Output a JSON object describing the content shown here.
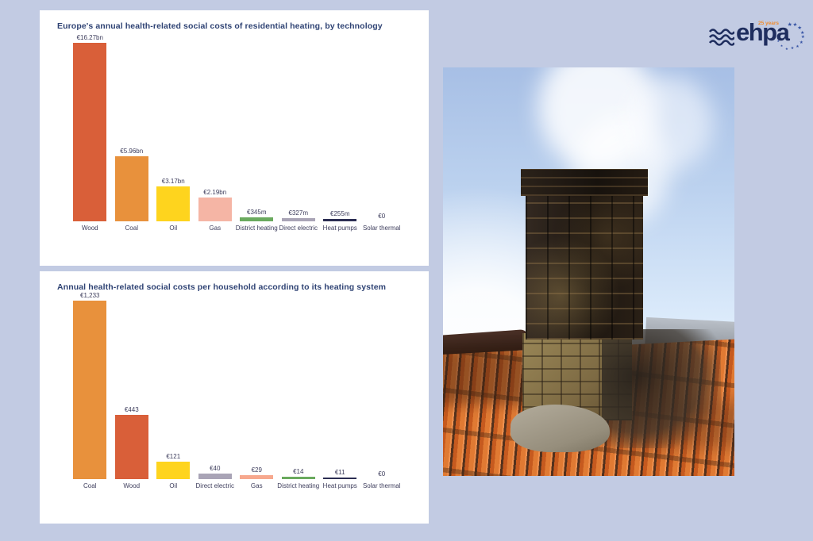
{
  "page": {
    "background_color": "#c2cbe3"
  },
  "logo": {
    "brand": "ehpa",
    "anniversary": "25 years",
    "star_char": "★",
    "star_count": 11,
    "brand_color": "#1e2d5e",
    "accent_color": "#ef8b2d"
  },
  "photo": {
    "description": "smoking dark brick chimney on an orange tiled roof against blue sky"
  },
  "chart_data": [
    {
      "type": "bar",
      "title": "Europe's annual health-related social costs of residential heating, by technology",
      "categories": [
        "Wood",
        "Coal",
        "Oil",
        "Gas",
        "District heating",
        "Direct electric",
        "Heat pumps",
        "Solar thermal"
      ],
      "values": [
        16.27,
        5.96,
        3.17,
        2.19,
        0.345,
        0.327,
        0.255,
        0
      ],
      "value_labels": [
        "€16.27bn",
        "€5.96bn",
        "€3.17bn",
        "€2.19bn",
        "€345m",
        "€327m",
        "€255m",
        "€0"
      ],
      "colors": [
        "#d95f39",
        "#e8913c",
        "#fed41e",
        "#f5b5a5",
        "#6aaa5e",
        "#a9a4b6",
        "#2b2d52",
        "#cccccc"
      ],
      "unit": "EUR, billions/millions per year",
      "ylim": [
        0,
        16.27
      ],
      "grid": false,
      "legend": "none"
    },
    {
      "type": "bar",
      "title": "Annual health-related social costs per household according to its heating system",
      "categories": [
        "Coal",
        "Wood",
        "Oil",
        "Direct electric",
        "Gas",
        "District heating",
        "Heat pumps",
        "Solar thermal"
      ],
      "values": [
        1233,
        443,
        121,
        40,
        29,
        14,
        11,
        0
      ],
      "value_labels": [
        "€1,233",
        "€443",
        "€121",
        "€40",
        "€29",
        "€14",
        "€11",
        "€0"
      ],
      "colors": [
        "#e8913c",
        "#d95f39",
        "#fed41e",
        "#a9a4b6",
        "#f7a88e",
        "#6aaa5e",
        "#2b2d52",
        "#cccccc"
      ],
      "unit": "EUR per household per year",
      "ylim": [
        0,
        1233
      ],
      "grid": false,
      "legend": "none"
    }
  ]
}
